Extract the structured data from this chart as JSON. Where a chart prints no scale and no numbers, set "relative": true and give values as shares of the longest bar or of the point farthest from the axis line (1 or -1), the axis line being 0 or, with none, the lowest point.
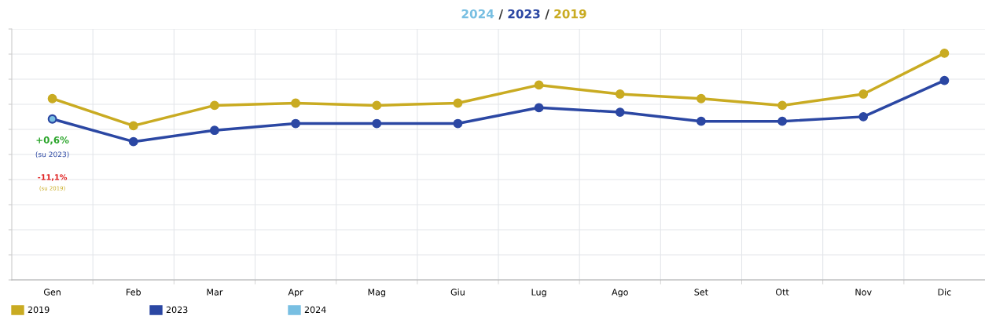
{
  "chart_data": {
    "type": "line",
    "title": "2024 / 2023 / 2019",
    "relative": true,
    "grid": true,
    "legend": "bottom left",
    "marker": "circle",
    "line_style": "solid",
    "categories": [
      "Gen",
      "Feb",
      "Mar",
      "Apr",
      "Mag",
      "Giu",
      "Lug",
      "Ago",
      "Set",
      "Ott",
      "Nov",
      "Dic"
    ],
    "series": [
      {
        "name": "2019",
        "color": "#c9ab22",
        "values": [
          0.8,
          0.68,
          0.77,
          0.78,
          0.77,
          0.78,
          0.86,
          0.82,
          0.8,
          0.77,
          0.82,
          1
        ]
      },
      {
        "name": "2023",
        "color": "#2b47a3",
        "values": [
          0.71,
          0.61,
          0.66,
          0.69,
          0.69,
          0.69,
          0.76,
          0.74,
          0.7,
          0.7,
          0.72,
          0.88
        ]
      },
      {
        "name": "2024",
        "color": "#78bfe2",
        "values": [
          0.71,
          null,
          null,
          null,
          null,
          null,
          null,
          null,
          null,
          null,
          null,
          null
        ]
      }
    ],
    "annotations": [
      "+0,6%",
      "(su 2023)",
      "-11,1%",
      "(su 2019)"
    ]
  }
}
